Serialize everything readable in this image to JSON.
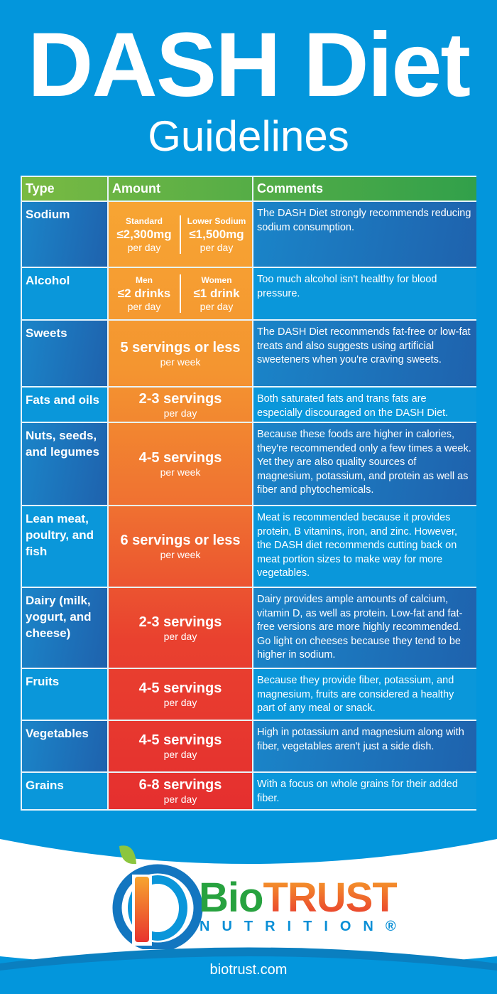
{
  "header": {
    "title": "DASH Diet",
    "subtitle": "Guidelines"
  },
  "table": {
    "columns": [
      "Type",
      "Amount",
      "Comments"
    ],
    "rows": [
      {
        "type": "Sodium",
        "split": [
          {
            "label": "Standard",
            "value": "≤2,300mg",
            "unit": "per day"
          },
          {
            "label": "Lower Sodium",
            "value": "≤1,500mg",
            "unit": "per day"
          }
        ],
        "comment": "The DASH Diet strongly recommends reducing sodium consumption."
      },
      {
        "type": "Alcohol",
        "split": [
          {
            "label": "Men",
            "value": "≤2 drinks",
            "unit": "per day"
          },
          {
            "label": "Women",
            "value": "≤1 drink",
            "unit": "per day"
          }
        ],
        "comment": "Too much alcohol isn't healthy for blood pressure."
      },
      {
        "type": "Sweets",
        "amount": "5 servings or less",
        "unit": "per week",
        "comment": "The DASH Diet recommends fat-free or low-fat treats and also suggests using artificial sweeteners when you're craving sweets."
      },
      {
        "type": "Fats and oils",
        "amount": "2-3 servings",
        "unit": "per day",
        "comment": "Both saturated fats and trans fats are especially discouraged on the DASH Diet."
      },
      {
        "type": "Nuts, seeds, and legumes",
        "amount": "4-5 servings",
        "unit": "per week",
        "comment": "Because these foods are higher in calories, they're recommended only a few times a week. Yet they are also quality sources of magnesium, potassium, and protein as well as fiber and phytochemicals."
      },
      {
        "type": "Lean meat, poultry, and fish",
        "amount": "6 servings or less",
        "unit": "per week",
        "comment": "Meat is recommended because it provides protein, B vitamins, iron, and zinc. However, the DASH diet recommends cutting back on meat portion sizes to make way for more vegetables."
      },
      {
        "type": "Dairy (milk, yogurt, and cheese)",
        "amount": "2-3 servings",
        "unit": "per day",
        "comment": "Dairy provides ample amounts of calcium, vitamin D, as well as protein. Low-fat and fat-free versions are more highly recommended. Go light on cheeses because they tend to be higher in sodium."
      },
      {
        "type": "Fruits",
        "amount": "4-5 servings",
        "unit": "per day",
        "comment": "Because they provide fiber, potassium, and magnesium, fruits are considered a healthy part of any meal or snack."
      },
      {
        "type": "Vegetables",
        "amount": "4-5 servings",
        "unit": "per day",
        "comment": "High in potassium and magnesium along with fiber, vegetables aren't just a side dish."
      },
      {
        "type": "Grains",
        "amount": "6-8 servings",
        "unit": "per day",
        "comment": "With a focus on whole grains for their added fiber."
      }
    ]
  },
  "footer": {
    "brand_bio": "Bio",
    "brand_trust": "TRUST",
    "brand_sub": "NUTRITION®",
    "url": "biotrust.com"
  },
  "colors": {
    "background": "#0396dc",
    "header_green": "#2e9f4b",
    "amount_orange": "#f7a533",
    "amount_red": "#e52f2f"
  }
}
